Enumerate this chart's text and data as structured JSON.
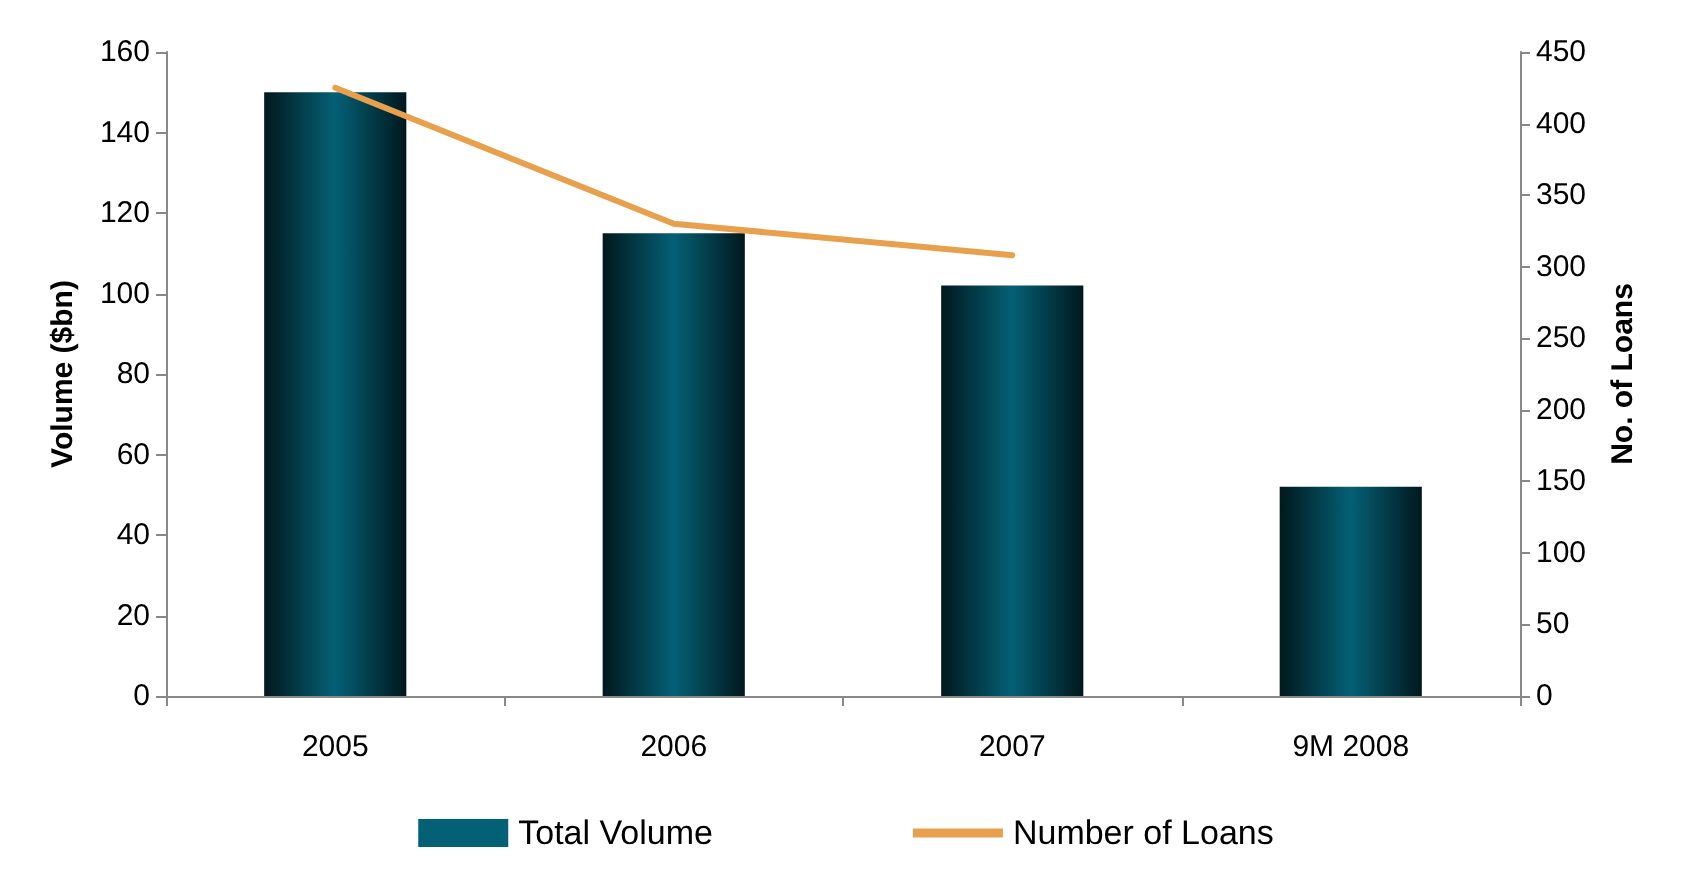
{
  "chart_data": {
    "type": "bar",
    "ylabel": "Volume ($bn)",
    "y2label": "No. of Loans",
    "categories": [
      "2005",
      "2006",
      "2007",
      "9M 2008"
    ],
    "series": [
      {
        "name": "Total Volume",
        "color": "#046075",
        "values": [
          150,
          115,
          102,
          52
        ]
      },
      {
        "name": "Number of Loans",
        "type": "line",
        "axis": "y2",
        "color": "#e8a04c",
        "values": [
          425,
          330,
          308,
          null
        ]
      }
    ],
    "ylim": [
      0,
      160
    ],
    "yticks": [
      0,
      20,
      40,
      60,
      80,
      100,
      120,
      140,
      160
    ],
    "y2lim": [
      0,
      450
    ],
    "y2ticks": [
      0,
      50,
      100,
      150,
      200,
      250,
      300,
      350,
      400,
      450
    ],
    "grid": false,
    "legend": "bottom",
    "marker": "none",
    "line_style": "solid"
  }
}
